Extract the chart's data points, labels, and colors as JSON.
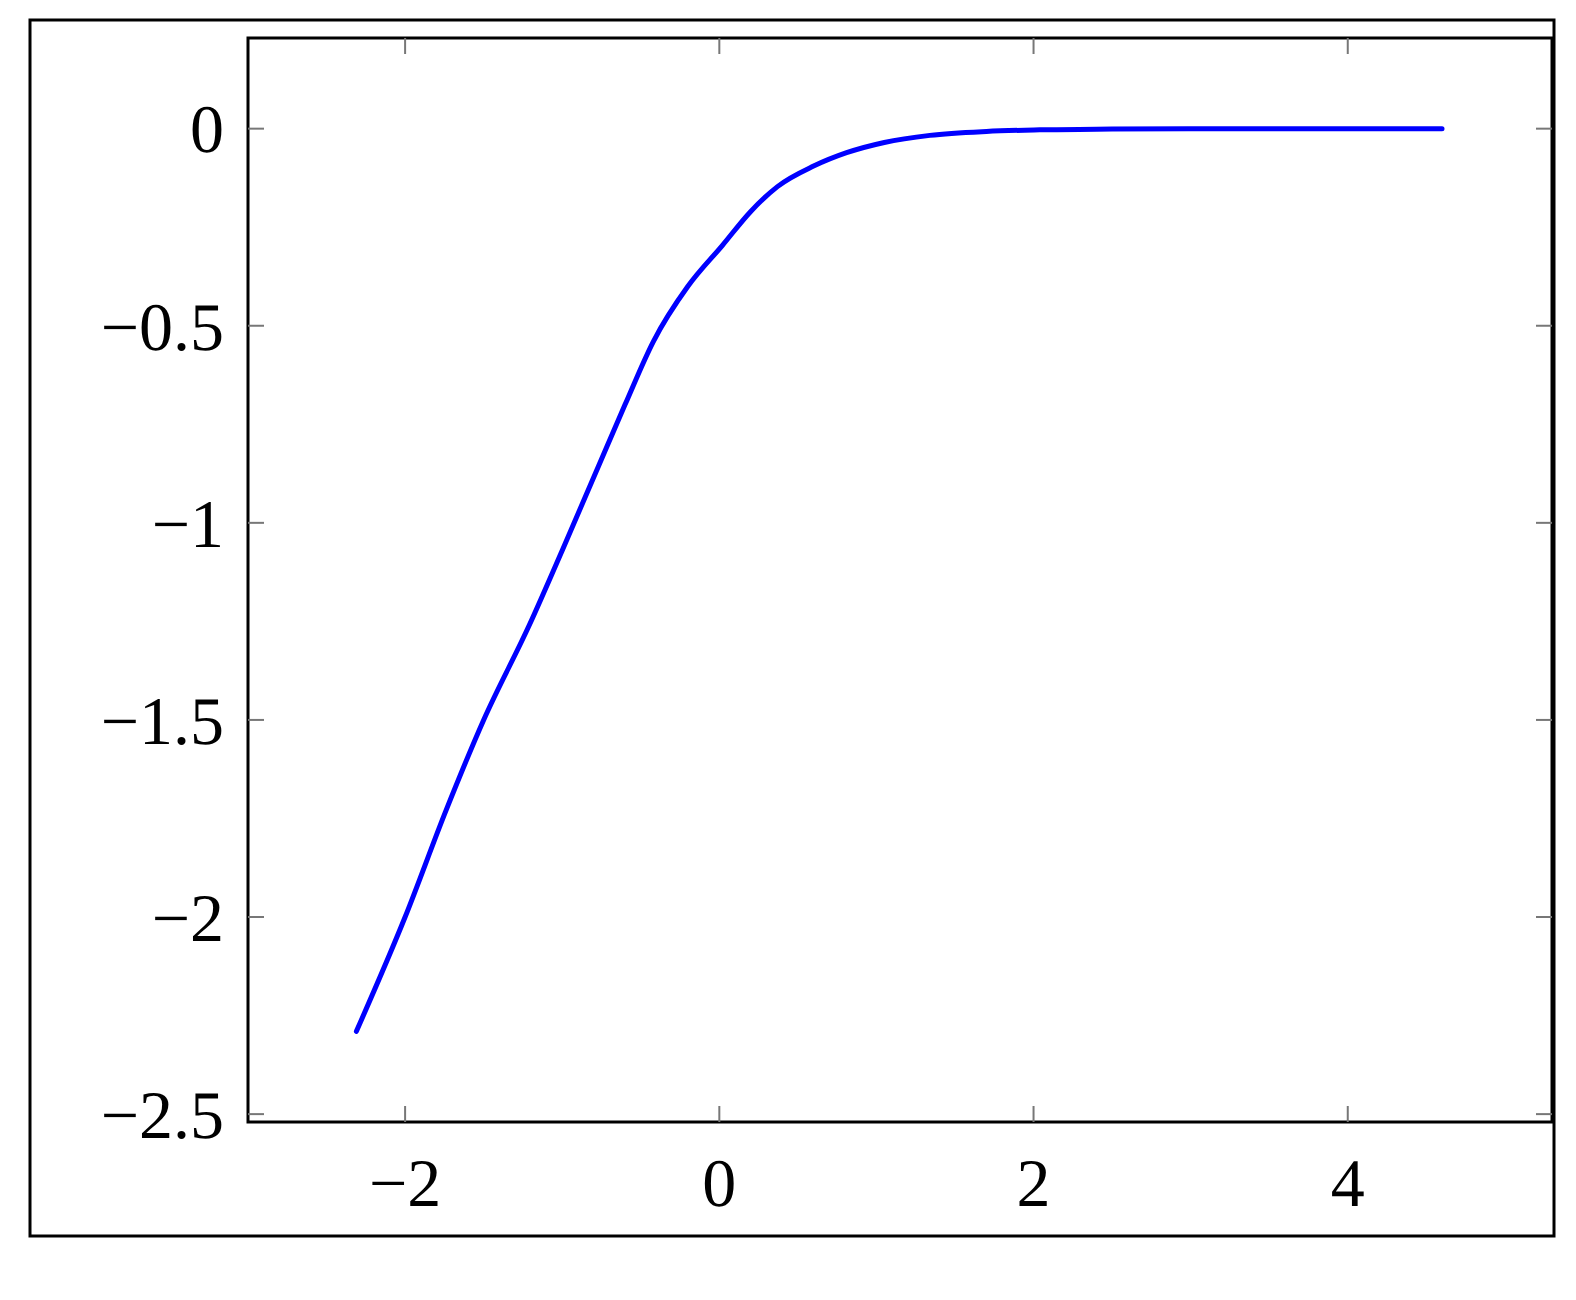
{
  "chart_data": {
    "type": "line",
    "x": [
      -2.31,
      -2.0,
      -1.74,
      -1.5,
      -1.21,
      -1.0,
      -0.77,
      -0.6,
      -0.42,
      -0.2,
      0.02,
      0.2,
      0.37,
      0.6,
      0.81,
      1.05,
      1.34,
      1.7,
      2.04,
      2.5,
      3.0,
      3.5,
      4.0,
      4.6
    ],
    "series": [
      {
        "color": "#0000ff",
        "values": [
          -2.29,
          -2.0,
          -1.73,
          -1.5,
          -1.26,
          -1.07,
          -0.857,
          -0.7,
          -0.54,
          -0.4,
          -0.296,
          -0.21,
          -0.147,
          -0.095,
          -0.061,
          -0.035,
          -0.017,
          -0.007,
          -0.003,
          -0.001,
          0,
          0,
          0,
          0
        ]
      }
    ],
    "xlim": [
      -3.0,
      5.3
    ],
    "ylim": [
      -2.52,
      0.23
    ],
    "xticks": [
      {
        "value": -2,
        "label": "−2"
      },
      0,
      2,
      4
    ],
    "yticks": [
      {
        "value": -2.5,
        "label": "−2.5"
      },
      {
        "value": -2,
        "label": "−2"
      },
      {
        "value": -1.5,
        "label": "−1.5"
      },
      {
        "value": -1,
        "label": "−1"
      },
      {
        "value": -0.5,
        "label": "−0.5"
      },
      0
    ],
    "marker": "none",
    "line_style": "solid"
  }
}
